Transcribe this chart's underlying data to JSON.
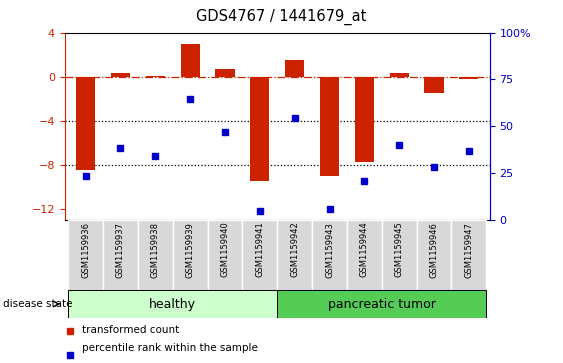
{
  "title": "GDS4767 / 1441679_at",
  "samples": [
    "GSM1159936",
    "GSM1159937",
    "GSM1159938",
    "GSM1159939",
    "GSM1159940",
    "GSM1159941",
    "GSM1159942",
    "GSM1159943",
    "GSM1159944",
    "GSM1159945",
    "GSM1159946",
    "GSM1159947"
  ],
  "red_bars": [
    -8.5,
    0.3,
    0.1,
    3.0,
    0.7,
    -9.5,
    1.5,
    -9.0,
    -7.8,
    0.3,
    -1.5,
    -0.2
  ],
  "blue_squares": [
    -9.0,
    -6.5,
    -7.2,
    -2.0,
    -5.0,
    -12.2,
    -3.8,
    -12.0,
    -9.5,
    -6.2,
    -8.2,
    -6.8
  ],
  "ylim_left": [
    -13,
    4
  ],
  "ylim_right": [
    0,
    100
  ],
  "right_ticks": [
    0,
    25,
    50,
    75,
    100
  ],
  "right_tick_labels": [
    "0",
    "25",
    "50",
    "75",
    "100%"
  ],
  "left_ticks": [
    -12,
    -8,
    -4,
    0,
    4
  ],
  "hlines": [
    -4,
    -8
  ],
  "bar_color": "#cc2200",
  "square_color": "#0000cc",
  "bg_color": "#ffffff",
  "healthy_color": "#ccffcc",
  "tumor_color": "#55cc55",
  "healthy_samples": 6,
  "legend_items": [
    {
      "label": "transformed count",
      "color": "#cc2200"
    },
    {
      "label": "percentile rank within the sample",
      "color": "#0000cc"
    }
  ]
}
